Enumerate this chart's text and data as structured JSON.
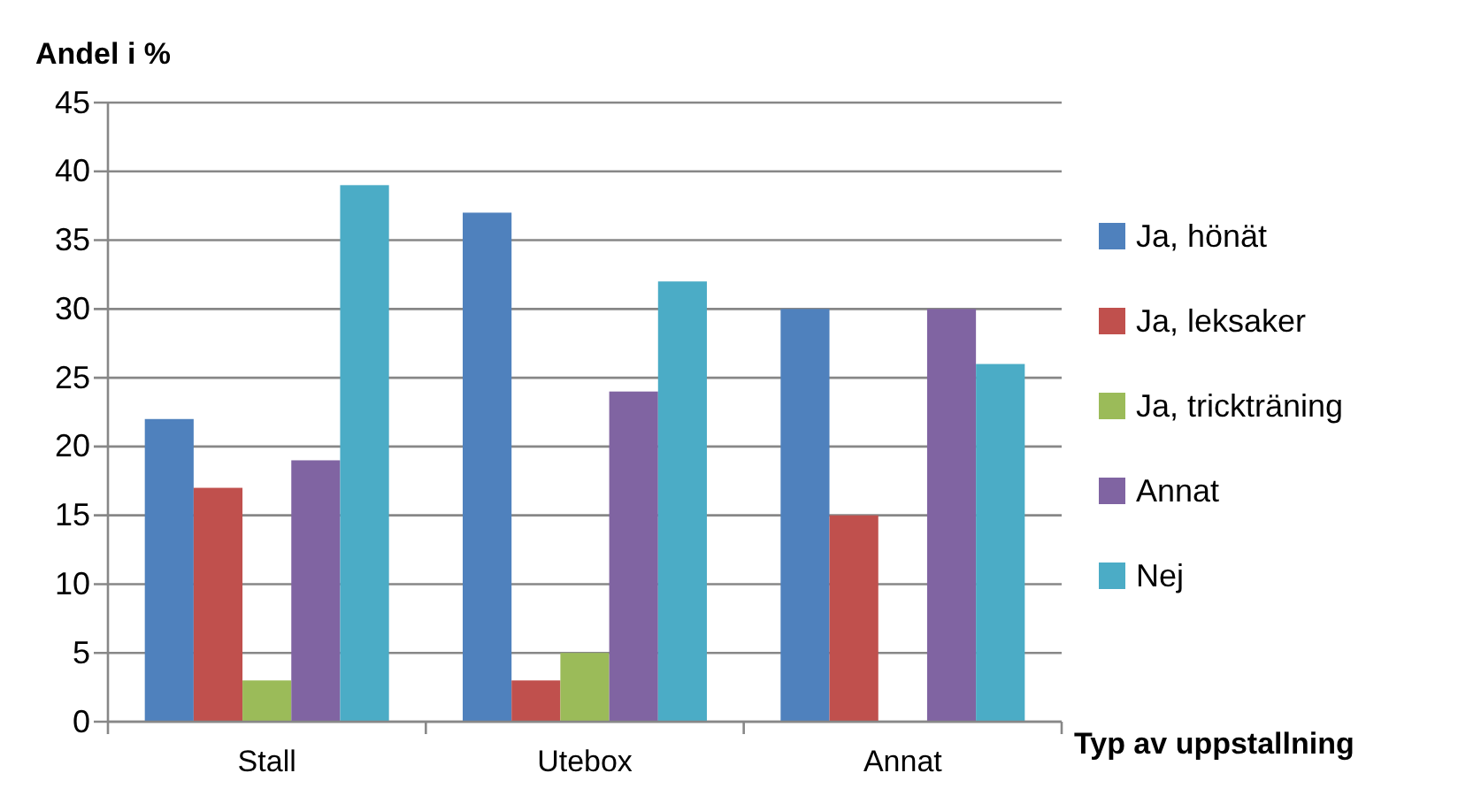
{
  "chart_data": {
    "type": "bar",
    "ylabel": "Andel i %",
    "xlabel": "Typ av uppstallning",
    "categories": [
      "Stall",
      "Utebox",
      "Annat"
    ],
    "series": [
      {
        "name": "Ja, hönät",
        "color": "#4f81bd",
        "values": [
          22,
          37,
          30
        ]
      },
      {
        "name": "Ja, leksaker",
        "color": "#c0504d",
        "values": [
          17,
          3,
          15
        ]
      },
      {
        "name": "Ja, trickträning",
        "color": "#9bbb59",
        "values": [
          3,
          5,
          0
        ]
      },
      {
        "name": "Annat",
        "color": "#8064a2",
        "values": [
          19,
          24,
          30
        ]
      },
      {
        "name": "Nej",
        "color": "#4bacc6",
        "values": [
          39,
          32,
          26
        ]
      }
    ],
    "ylim": [
      0,
      45
    ],
    "yticks": [
      0,
      5,
      10,
      15,
      20,
      25,
      30,
      35,
      40,
      45
    ],
    "grid": "y",
    "legend": "right"
  }
}
